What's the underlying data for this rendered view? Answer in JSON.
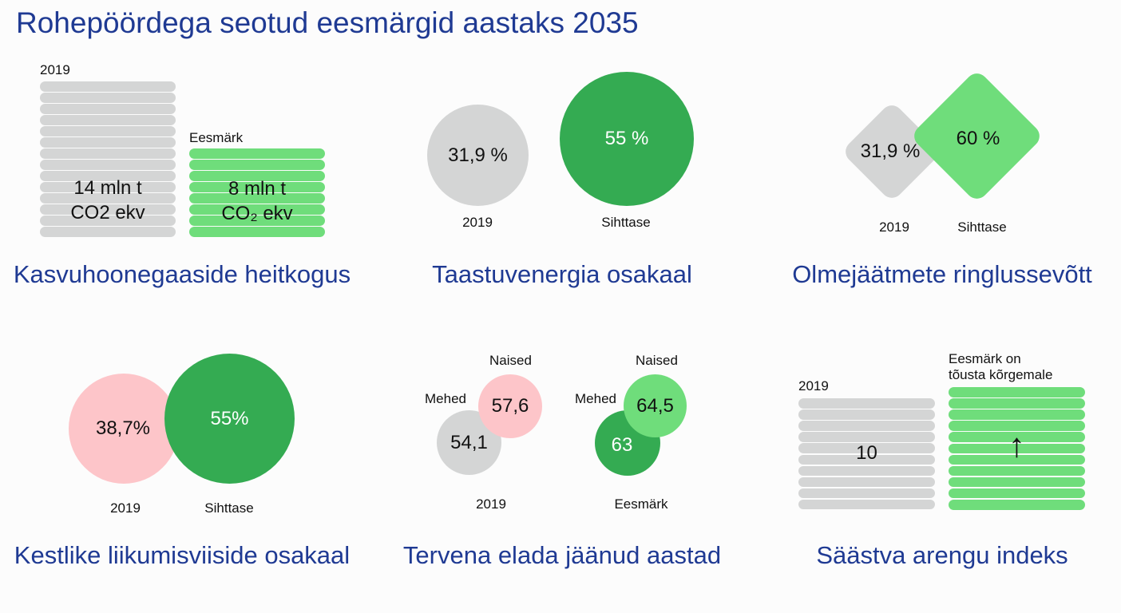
{
  "page": {
    "title": "Rohepöördega seotud eesmärgid aastaks 2035"
  },
  "colors": {
    "gray": "#d4d5d5",
    "light_green": "#6fdd7b",
    "dark_green": "#34ab52",
    "pink": "#fdc5c9",
    "title_blue": "#1f3a93"
  },
  "chart_data": [
    {
      "type": "bar",
      "title": "Kasvuhoonegaaside heitkogus",
      "categories": [
        "2019",
        "Eesmärk"
      ],
      "values": [
        14,
        8
      ],
      "value_labels": [
        "14 mln t\nCO2 ekv",
        "8 mln t\nCO2 ekv"
      ],
      "value_lines": [
        [
          "14 mln t",
          "CO2 ekv"
        ],
        [
          "8 mln t",
          "CO₂ ekv"
        ]
      ],
      "unit": "mln t CO2 ekv"
    },
    {
      "type": "bubble",
      "title": "Taastuvenergia osakaal",
      "categories": [
        "2019",
        "Sihttase"
      ],
      "values": [
        31.9,
        55
      ],
      "value_labels": [
        "31,9 %",
        "55 %"
      ]
    },
    {
      "type": "bubble",
      "title": "Olmejäätmete ringlussevõtt",
      "categories": [
        "2019",
        "Sihttase"
      ],
      "values": [
        31.9,
        60
      ],
      "value_labels": [
        "31,9 %",
        "60 %"
      ]
    },
    {
      "type": "bubble",
      "title": "Kestlike liikumisviiside osakaal",
      "categories": [
        "2019",
        "Sihttase"
      ],
      "values": [
        38.7,
        55
      ],
      "value_labels": [
        "38,7%",
        "55%"
      ]
    },
    {
      "type": "bubble",
      "title": "Tervena elada jäänud aastad",
      "categories": [
        "2019",
        "Eesmärk"
      ],
      "series": [
        {
          "name": "Mehed",
          "values": [
            54.1,
            63
          ],
          "value_labels": [
            "54,1",
            "63"
          ]
        },
        {
          "name": "Naised",
          "values": [
            57.6,
            64.5
          ],
          "value_labels": [
            "57,6",
            "64,5"
          ]
        }
      ]
    },
    {
      "type": "bar",
      "title": "Säästva arengu indeks",
      "categories": [
        "2019",
        "Eesmärk on tõusta kõrgemale"
      ],
      "category_lines": [
        [
          "2019"
        ],
        [
          "Eesmärk on",
          "tõusta kõrgemale"
        ]
      ],
      "values": [
        10,
        null
      ],
      "value_labels": [
        "10",
        "↑"
      ]
    }
  ]
}
